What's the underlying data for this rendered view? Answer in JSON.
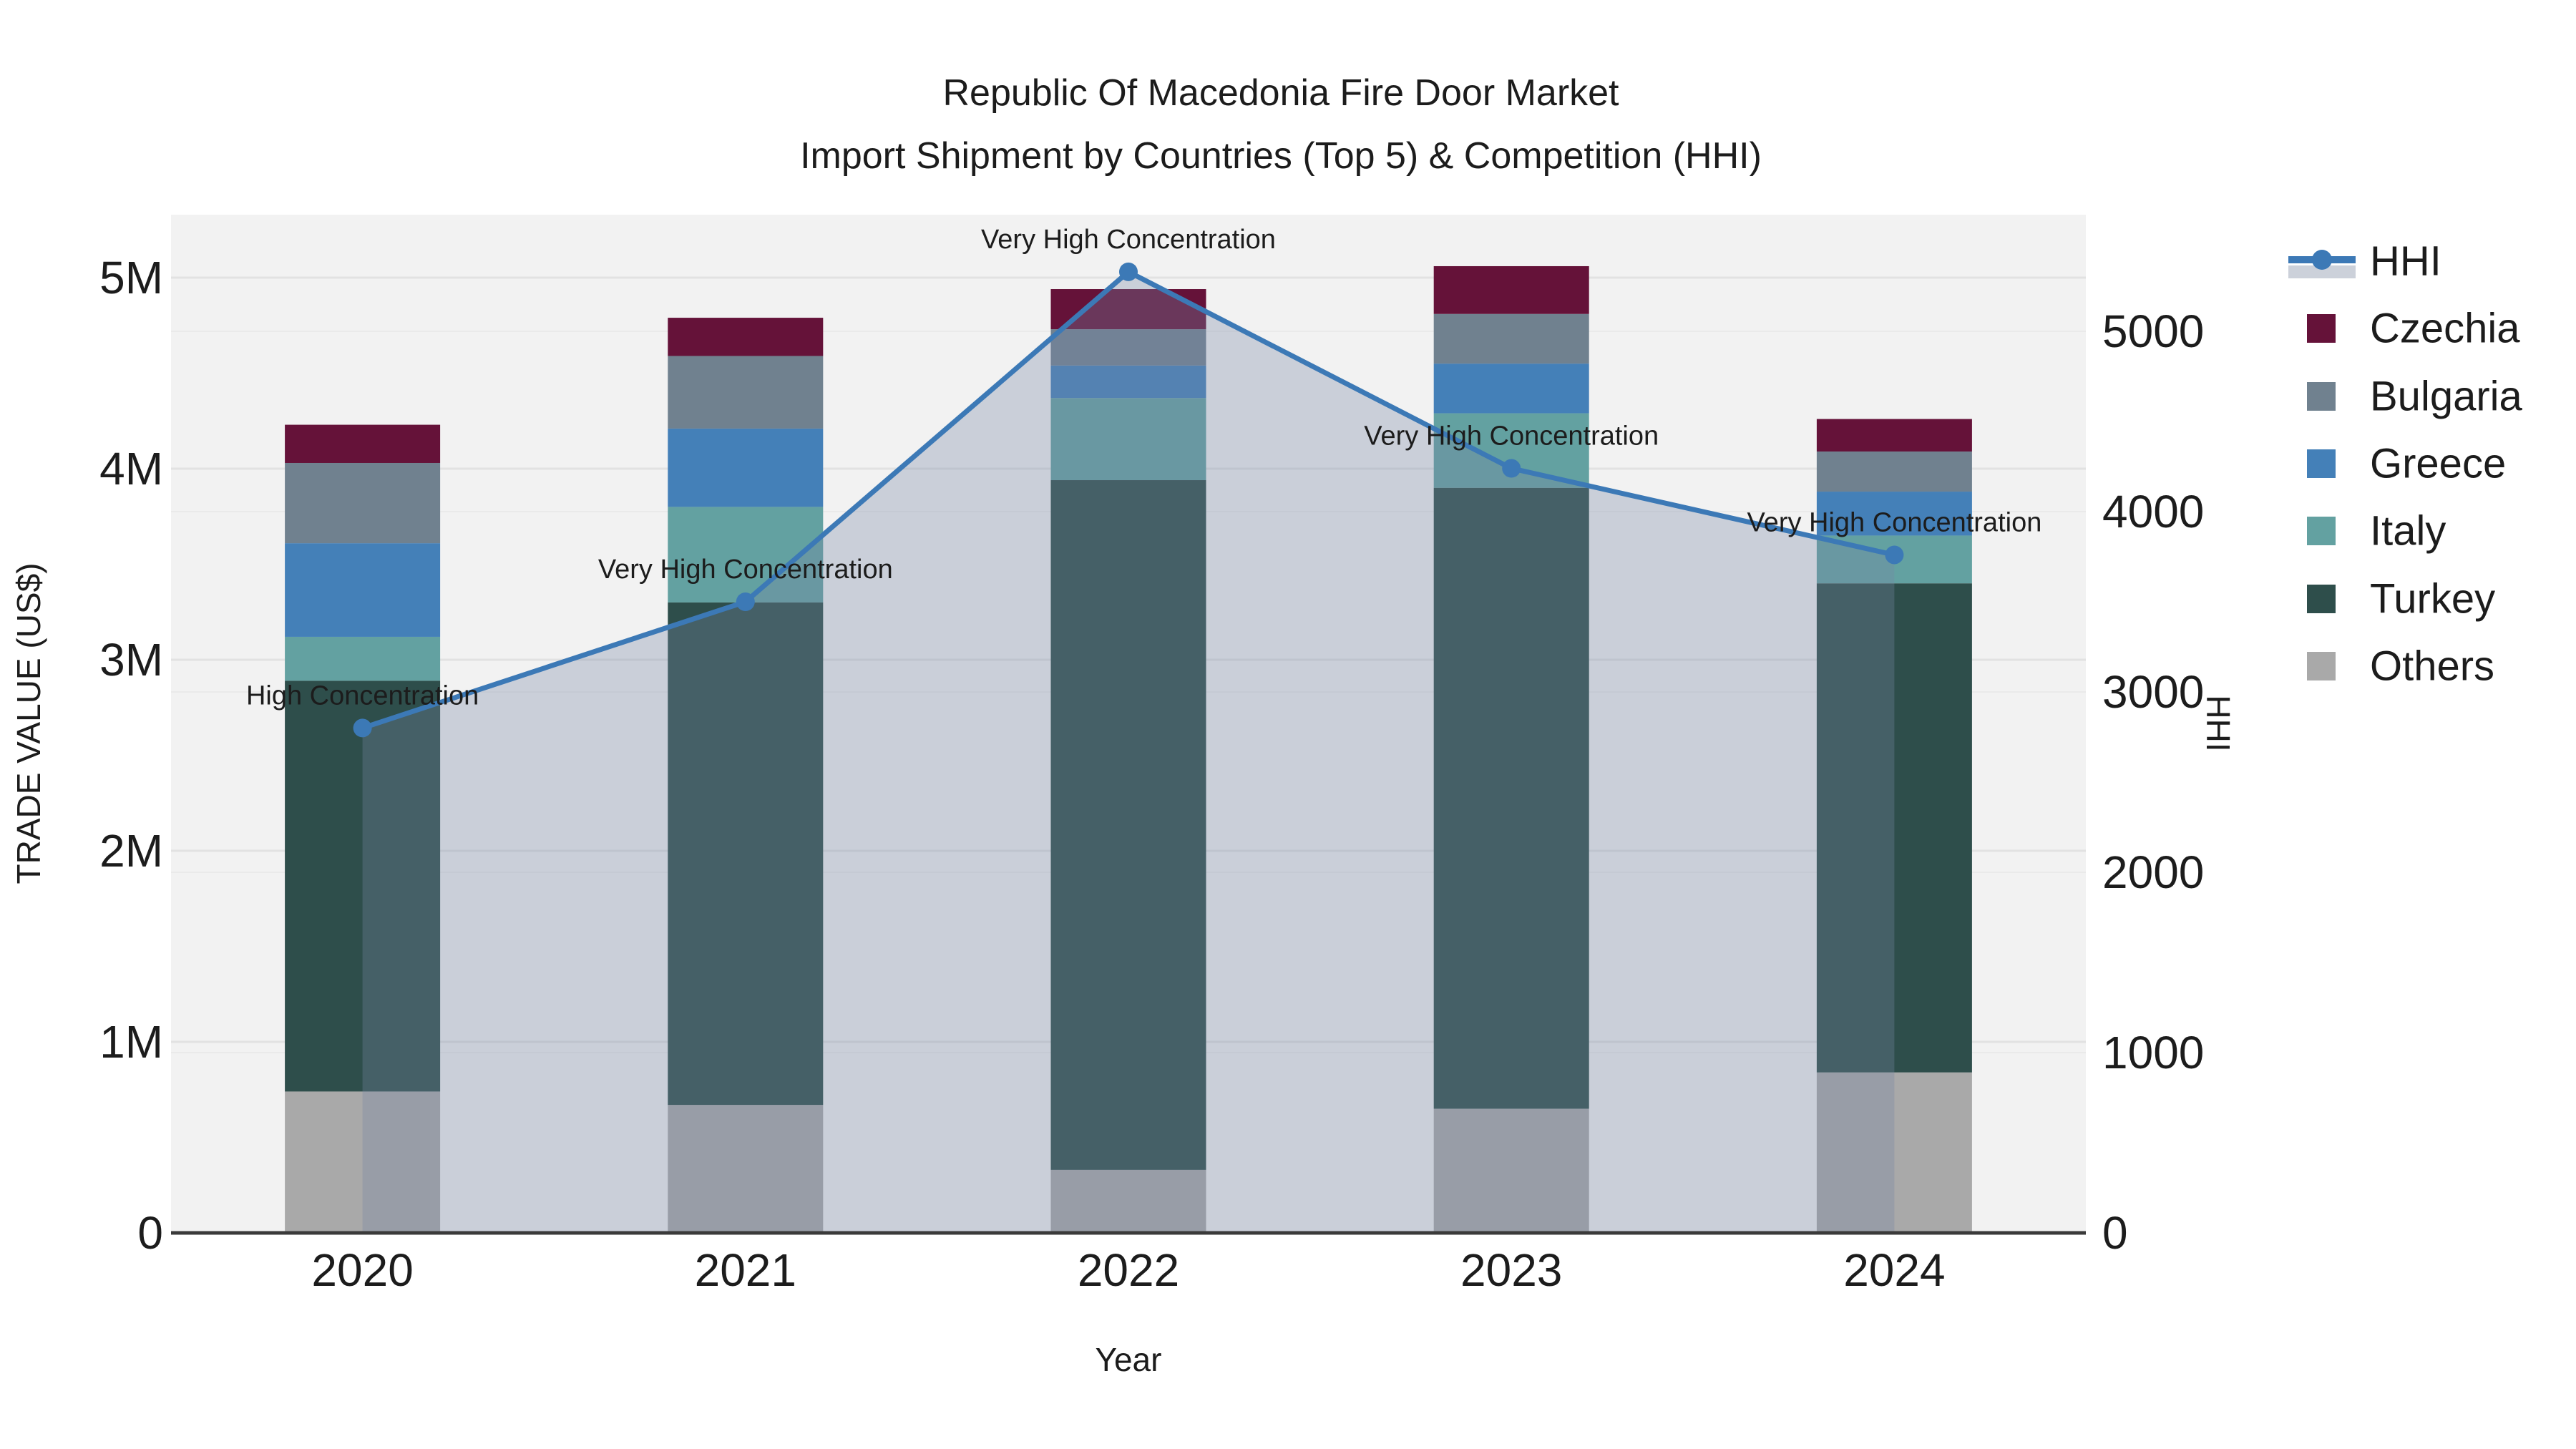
{
  "title": {
    "line1": "Republic Of Macedonia Fire Door Market",
    "line2": "Import Shipment by Countries (Top 5) & Competition (HHI)"
  },
  "chart_data": {
    "type": "bar",
    "subtype": "stacked-bars-with-line-area-overlay",
    "x": [
      "2020",
      "2021",
      "2022",
      "2023",
      "2024"
    ],
    "xlabel": "Year",
    "ylabel_left": "TRADE VALUE (US$)",
    "ylabel_right": "HHI",
    "y_left_ticks": [
      "0",
      "1M",
      "2M",
      "3M",
      "4M",
      "5M"
    ],
    "y_left_tick_values_millions": [
      0,
      1,
      2,
      3,
      4,
      5
    ],
    "ylim_left_millions": [
      0,
      5.33
    ],
    "y_right_ticks": [
      "0",
      "1000",
      "2000",
      "3000",
      "4000",
      "5000"
    ],
    "y_right_tick_values": [
      0,
      1000,
      2000,
      3000,
      4000,
      5000
    ],
    "ylim_right": [
      0,
      5647
    ],
    "grid": "horizontal-both-axes",
    "legend_position": "right",
    "stack_order_bottom_to_top": [
      "Others",
      "Turkey",
      "Italy",
      "Greece",
      "Bulgaria",
      "Czechia"
    ],
    "series": [
      {
        "name": "Czechia",
        "color": "#651239",
        "values_millions_usd": [
          0.2,
          0.2,
          0.21,
          0.25,
          0.17
        ]
      },
      {
        "name": "Bulgaria",
        "color": "#70818f",
        "values_millions_usd": [
          0.42,
          0.38,
          0.19,
          0.26,
          0.21
        ]
      },
      {
        "name": "Greece",
        "color": "#4480b8",
        "values_millions_usd": [
          0.49,
          0.41,
          0.17,
          0.26,
          0.23
        ]
      },
      {
        "name": "Italy",
        "color": "#63a1a1",
        "values_millions_usd": [
          0.23,
          0.5,
          0.43,
          0.39,
          0.25
        ]
      },
      {
        "name": "Turkey",
        "color": "#2e4e4b",
        "values_millions_usd": [
          2.15,
          2.63,
          3.61,
          3.25,
          2.56
        ]
      },
      {
        "name": "Others",
        "color": "#a9a9a9",
        "values_millions_usd": [
          0.74,
          0.67,
          0.33,
          0.65,
          0.84
        ]
      }
    ],
    "bar_totals_millions_usd": [
      4.23,
      4.79,
      4.94,
      5.06,
      4.26
    ],
    "hhi_line": {
      "name": "HHI",
      "color": "#3c79b6",
      "area_fill_color": "#7787a6",
      "area_fill_alpha": 0.32,
      "values": [
        2800,
        3500,
        5330,
        4240,
        3760
      ]
    },
    "annotations": [
      {
        "year": "2020",
        "text": "High Concentration"
      },
      {
        "year": "2021",
        "text": "Very High Concentration"
      },
      {
        "year": "2022",
        "text": "Very High Concentration"
      },
      {
        "year": "2023",
        "text": "Very High Concentration"
      },
      {
        "year": "2024",
        "text": "Very High Concentration"
      }
    ],
    "legend_items": [
      "HHI",
      "Czechia",
      "Bulgaria",
      "Greece",
      "Italy",
      "Turkey",
      "Others"
    ]
  },
  "colors": {
    "plot_background": "#f2f2f2",
    "figure_background": "#ffffff",
    "gridline_left": "#e2e2e2",
    "gridline_right": "#eaeaea",
    "axis_line": "#3a3a3a",
    "text": "#1c1c1c",
    "hhi_legend_band": "#ccd1da"
  }
}
